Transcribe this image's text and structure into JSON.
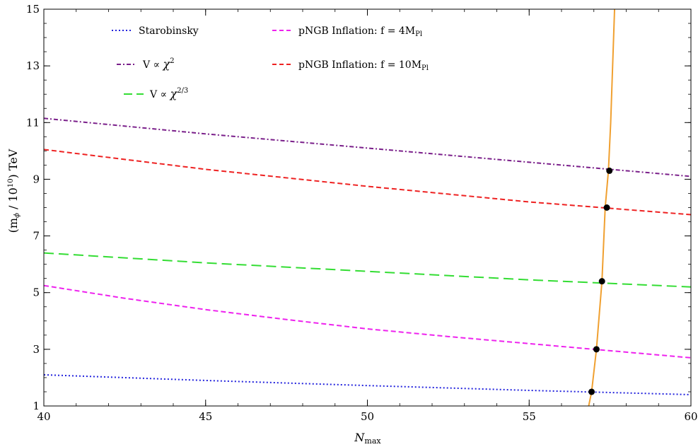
{
  "chart_data": {
    "type": "line",
    "title": "",
    "xlabel": "N_max",
    "xlabel_main": "N",
    "xlabel_sub": "max",
    "ylabel": "(m_φ / 10^10) TeV",
    "xlim": [
      40,
      60
    ],
    "ylim": [
      1,
      15
    ],
    "x_ticks": [
      40,
      45,
      50,
      55,
      60
    ],
    "y_ticks": [
      1,
      3,
      5,
      7,
      9,
      11,
      13,
      15
    ],
    "x_minor_step": 1,
    "y_minor_step": 0.5,
    "grid": false,
    "legend_position": "top",
    "series": [
      {
        "name": "Starobinsky",
        "color": "#2222dd",
        "dash": "dotted",
        "x": [
          40,
          45,
          50,
          55,
          60
        ],
        "y": [
          2.1,
          1.9,
          1.72,
          1.55,
          1.4
        ]
      },
      {
        "name": "V ∝ χ²",
        "color": "#7a1f8a",
        "dash": "dash-dot",
        "x": [
          40,
          45,
          50,
          55,
          60
        ],
        "y": [
          11.15,
          10.6,
          10.1,
          9.6,
          9.1
        ]
      },
      {
        "name": "V ∝ χ^{2/3}",
        "color": "#33dd33",
        "dash": "long-dash",
        "x": [
          40,
          45,
          50,
          55,
          60
        ],
        "y": [
          6.4,
          6.05,
          5.75,
          5.45,
          5.2
        ]
      },
      {
        "name": "pNGB Inflation: f = 4M_Pl",
        "color": "#ee22ee",
        "dash": "dashed",
        "x": [
          40,
          42.5,
          45,
          47.5,
          50,
          52.5,
          55,
          57.5,
          60
        ],
        "y": [
          5.25,
          4.8,
          4.4,
          4.05,
          3.72,
          3.45,
          3.2,
          2.95,
          2.7
        ]
      },
      {
        "name": "pNGB Inflation: f = 10M_Pl",
        "color": "#ee2222",
        "dash": "dashed",
        "x": [
          40,
          45,
          50,
          55,
          60
        ],
        "y": [
          10.05,
          9.35,
          8.75,
          8.2,
          7.75
        ]
      },
      {
        "name": "",
        "color": "#f0a030",
        "dash": "solid",
        "x": [
          56.84,
          56.93,
          57.08,
          57.25,
          57.35,
          57.45,
          57.52,
          57.58,
          57.64
        ],
        "y": [
          1.0,
          1.5,
          3.0,
          5.4,
          8.0,
          9.3,
          11.0,
          13.0,
          15.0
        ]
      }
    ],
    "intersection_points": [
      {
        "x": 56.93,
        "y": 1.5
      },
      {
        "x": 57.08,
        "y": 3.0
      },
      {
        "x": 57.25,
        "y": 5.4
      },
      {
        "x": 57.4,
        "y": 8.0
      },
      {
        "x": 57.48,
        "y": 9.3
      }
    ]
  },
  "legend": {
    "starobinsky": "Starobinsky",
    "quad_prefix": "V ∝ ",
    "quad_var": "χ",
    "quad_exp": "2",
    "twothirds_prefix": "V ∝ ",
    "twothirds_var": "χ",
    "twothirds_exp": "2/3",
    "pngb4_text": "pNGB Inflation: f = 4M",
    "pngb4_sub": "Pl",
    "pngb10_text": "pNGB Inflation: f = 10M",
    "pngb10_sub": "Pl"
  },
  "ylabel_parts": {
    "open": "(m",
    "sub": "ϕ",
    "mid": " / 10",
    "sup": "10",
    "close": ") TeV"
  }
}
